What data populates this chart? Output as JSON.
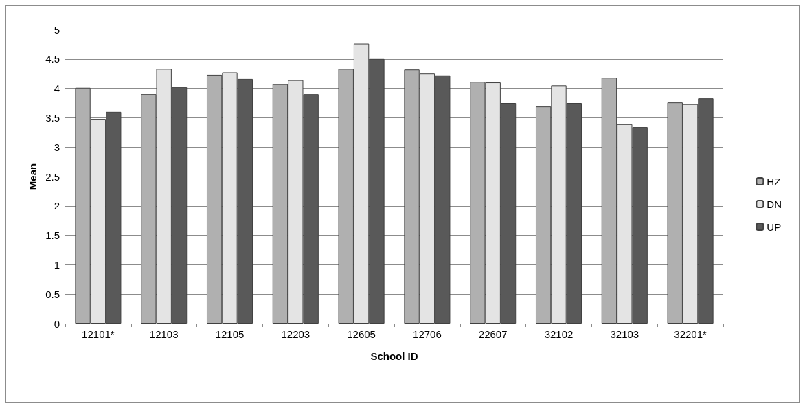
{
  "chart_data": {
    "type": "bar",
    "xlabel": "School ID",
    "ylabel": "Mean",
    "categories": [
      "12101*",
      "12103",
      "12105",
      "12203",
      "12605",
      "12706",
      "22607",
      "32102",
      "32103",
      "32201*"
    ],
    "series": [
      {
        "name": "HZ",
        "color": "#b0b0b0",
        "values": [
          4.01,
          3.9,
          4.23,
          4.07,
          4.33,
          4.32,
          4.11,
          3.69,
          4.18,
          3.76
        ]
      },
      {
        "name": "DN",
        "color": "#e4e4e4",
        "values": [
          3.48,
          4.33,
          4.27,
          4.14,
          4.76,
          4.25,
          4.1,
          4.05,
          3.39,
          3.73
        ]
      },
      {
        "name": "UP",
        "color": "#595959",
        "values": [
          3.6,
          4.02,
          4.16,
          3.9,
          4.5,
          4.22,
          3.75,
          3.75,
          3.34,
          3.83
        ]
      }
    ],
    "ylim": [
      0,
      5
    ],
    "yticks": [
      0,
      0.5,
      1,
      1.5,
      2,
      2.5,
      3,
      3.5,
      4,
      4.5,
      5
    ],
    "grid": "y",
    "legend": "right"
  }
}
